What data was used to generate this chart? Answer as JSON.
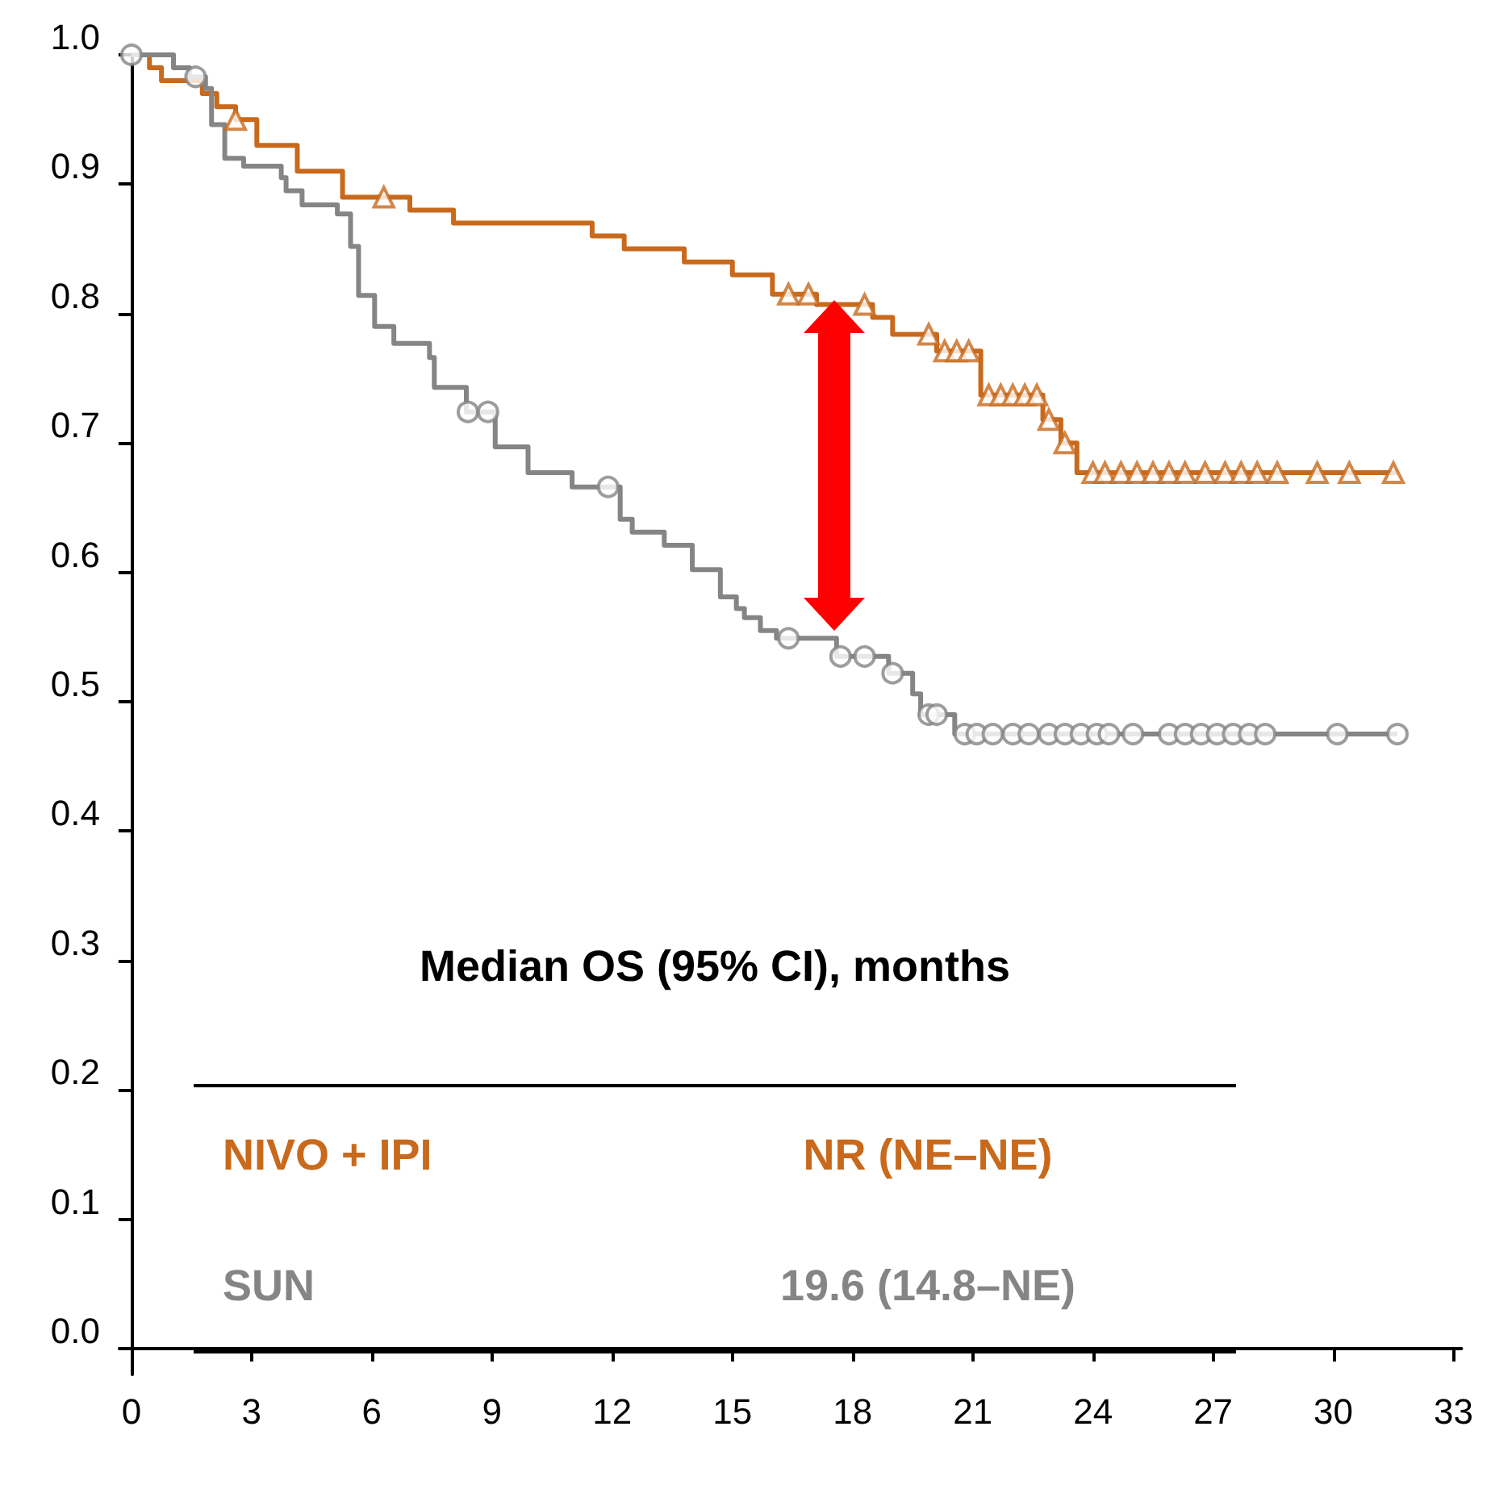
{
  "chart_data": {
    "type": "step",
    "annotations": [
      "Median OS (95% CI), months",
      "NR (NE–NE)",
      "19.6 (14.8–NE)"
    ],
    "series": [
      {
        "name": "NIVO + IPI",
        "color": "#c8691c",
        "x": [
          0,
          0.45,
          0.75,
          1.77,
          2.13,
          2.6,
          3.13,
          4.14,
          5.27,
          6.95,
          8.04,
          11.5,
          12.3,
          13.8,
          15.0,
          16.0,
          17.1,
          18.5,
          19.0,
          20.1,
          21.2,
          22.75,
          23.2,
          23.6,
          31.6
        ],
        "values": [
          1.0,
          0.99,
          0.98,
          0.97,
          0.96,
          0.95,
          0.93,
          0.91,
          0.89,
          0.88,
          0.87,
          0.86,
          0.85,
          0.84,
          0.83,
          0.815,
          0.807,
          0.797,
          0.784,
          0.771,
          0.737,
          0.718,
          0.7,
          0.677,
          0.677
        ]
      },
      {
        "name": "SUN",
        "color": "#858585",
        "x": [
          0,
          1.05,
          1.45,
          1.85,
          2.0,
          2.33,
          2.8,
          3.74,
          3.86,
          4.26,
          5.14,
          5.47,
          5.67,
          6.07,
          6.55,
          7.44,
          7.56,
          8.36,
          9.08,
          9.9,
          11.0,
          12.2,
          12.5,
          13.3,
          14.0,
          14.7,
          15.1,
          15.3,
          15.7,
          16.1,
          17.6,
          18.9,
          19.5,
          19.7,
          20.55,
          31.6
        ],
        "values": [
          1.0,
          0.99,
          0.983,
          0.974,
          0.946,
          0.92,
          0.914,
          0.905,
          0.895,
          0.884,
          0.877,
          0.852,
          0.814,
          0.79,
          0.777,
          0.766,
          0.743,
          0.724,
          0.697,
          0.677,
          0.666,
          0.641,
          0.631,
          0.621,
          0.602,
          0.581,
          0.572,
          0.565,
          0.555,
          0.549,
          0.535,
          0.522,
          0.506,
          0.49,
          0.475,
          0.475
        ]
      },
      {
        "type": "scatter",
        "marker": "triangle",
        "color": "#c8691c",
        "x": [
          2.6,
          6.3,
          16.4,
          16.9,
          18.3,
          19.9,
          20.3,
          20.6,
          20.9,
          21.4,
          21.7,
          22.0,
          22.3,
          22.6,
          22.9,
          23.3,
          24.0,
          24.3,
          24.7,
          25.1,
          25.5,
          25.9,
          26.3,
          26.8,
          27.3,
          27.7,
          28.1,
          28.6,
          29.6,
          30.4,
          31.5
        ],
        "values": [
          0.95,
          0.89,
          0.815,
          0.815,
          0.807,
          0.784,
          0.771,
          0.771,
          0.771,
          0.737,
          0.737,
          0.737,
          0.737,
          0.737,
          0.718,
          0.7,
          0.677,
          0.677,
          0.677,
          0.677,
          0.677,
          0.677,
          0.677,
          0.677,
          0.677,
          0.677,
          0.677,
          0.677,
          0.677,
          0.677,
          0.677
        ]
      },
      {
        "type": "scatter",
        "marker": "circle",
        "color": "#858585",
        "x": [
          0,
          1.6,
          8.4,
          8.9,
          11.9,
          16.4,
          17.7,
          18.3,
          19.0,
          19.9,
          20.1,
          20.8,
          21.1,
          21.5,
          22.0,
          22.4,
          22.9,
          23.3,
          23.7,
          24.1,
          24.4,
          25.0,
          25.9,
          26.3,
          26.7,
          27.1,
          27.5,
          27.9,
          28.3,
          30.1,
          31.6
        ],
        "values": [
          1.0,
          0.983,
          0.724,
          0.724,
          0.666,
          0.549,
          0.535,
          0.535,
          0.522,
          0.49,
          0.49,
          0.475,
          0.475,
          0.475,
          0.475,
          0.475,
          0.475,
          0.475,
          0.475,
          0.475,
          0.475,
          0.475,
          0.475,
          0.475,
          0.475,
          0.475,
          0.475,
          0.475,
          0.475,
          0.475,
          0.475
        ]
      }
    ],
    "xlim": [
      -0.3,
      33.2
    ],
    "xticks": [
      0,
      3,
      6,
      9,
      12,
      15,
      18,
      21,
      24,
      27,
      30,
      33
    ],
    "ylim": [
      -0.02,
      1.0
    ],
    "yticks": [
      {
        "value": 0,
        "label": "0.0"
      },
      {
        "value": 0.1,
        "label": "0.1"
      },
      {
        "value": 0.2,
        "label": "0.2"
      },
      {
        "value": 0.3,
        "label": "0.3"
      },
      {
        "value": 0.4,
        "label": "0.4"
      },
      {
        "value": 0.5,
        "label": "0.5"
      },
      {
        "value": 0.6,
        "label": "0.6"
      },
      {
        "value": 0.7,
        "label": "0.7"
      },
      {
        "value": 0.8,
        "label": "0.8"
      },
      {
        "value": 0.9,
        "label": "0.9"
      },
      {
        "value": 1.0,
        "label": "1.0"
      }
    ],
    "grid": false,
    "legend": false
  }
}
